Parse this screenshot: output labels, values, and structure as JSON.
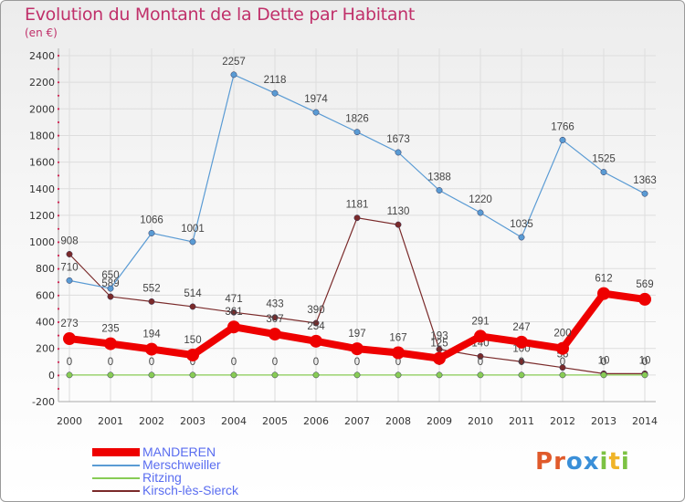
{
  "title": "Evolution du Montant de la Dette par Habitant",
  "subtitle": "(en €)",
  "logo": {
    "text": "Proxiti",
    "letters": [
      "P",
      "r",
      "o",
      "x",
      "i",
      "t",
      "i"
    ],
    "colors": [
      "#e05a2b",
      "#e05a2b",
      "#3a8fd8",
      "#3a8fd8",
      "#7cc243",
      "#f0b428",
      "#7cc243"
    ]
  },
  "chart_data": {
    "type": "line",
    "title": "Evolution du Montant de la Dette par Habitant",
    "subtitle": "(en €)",
    "xlabel": "",
    "ylabel": "",
    "ylim": [
      -200,
      2400
    ],
    "yticks": [
      -200,
      0,
      200,
      400,
      600,
      800,
      1000,
      1200,
      1400,
      1600,
      1800,
      2000,
      2200,
      2400
    ],
    "x": [
      "2000",
      "2001",
      "2002",
      "2003",
      "2004",
      "2005",
      "2006",
      "2007",
      "2008",
      "2009",
      "2010",
      "2011",
      "2012",
      "2013",
      "2014"
    ],
    "grid": true,
    "legend_position": "bottom-left",
    "series": [
      {
        "name": "Kirsch-lès-Sierck",
        "color": "#7a2a2a",
        "width": 1,
        "values": [
          908,
          589,
          552,
          514,
          471,
          433,
          390,
          1181,
          1130,
          193,
          140,
          100,
          56,
          10,
          10
        ],
        "labels": [
          "908",
          "589",
          "552",
          "514",
          "471",
          "433",
          "390",
          "1181",
          "1130",
          "193",
          "140",
          "100",
          "56",
          "10",
          "10"
        ]
      },
      {
        "name": "Merschweiller",
        "color": "#5a9bd4",
        "width": 1,
        "values": [
          710,
          650,
          1066,
          1001,
          2257,
          2118,
          1974,
          1826,
          1673,
          1388,
          1220,
          1035,
          1766,
          1525,
          1363
        ],
        "labels": [
          "710",
          "650",
          "1066",
          "1001",
          "2257",
          "2118",
          "1974",
          "1826",
          "1673",
          "1388",
          "1220",
          "1035",
          "1766",
          "1525",
          "1363"
        ]
      },
      {
        "name": "Ritzing",
        "color": "#88cc55",
        "width": 1,
        "values": [
          0,
          0,
          0,
          0,
          0,
          0,
          0,
          0,
          0,
          0,
          0,
          0,
          0,
          0,
          0
        ],
        "labels": [
          "0",
          "0",
          "0",
          "0",
          "0",
          "0",
          "0",
          "0",
          "0",
          "0",
          "0",
          "0",
          "0",
          "0",
          "0"
        ]
      },
      {
        "name": "MANDEREN",
        "color": "#ee0000",
        "width": 8,
        "values": [
          273,
          235,
          194,
          150,
          361,
          307,
          254,
          197,
          167,
          125,
          291,
          247,
          200,
          612,
          569
        ],
        "labels": [
          "273",
          "235",
          "194",
          "150",
          "361",
          "307",
          "254",
          "197",
          "167",
          "125",
          "291",
          "247",
          "200",
          "612",
          "569"
        ]
      }
    ],
    "legend": [
      "MANDEREN",
      "Merschweiller",
      "Ritzing",
      "Kirsch-lès-Sierck"
    ]
  }
}
